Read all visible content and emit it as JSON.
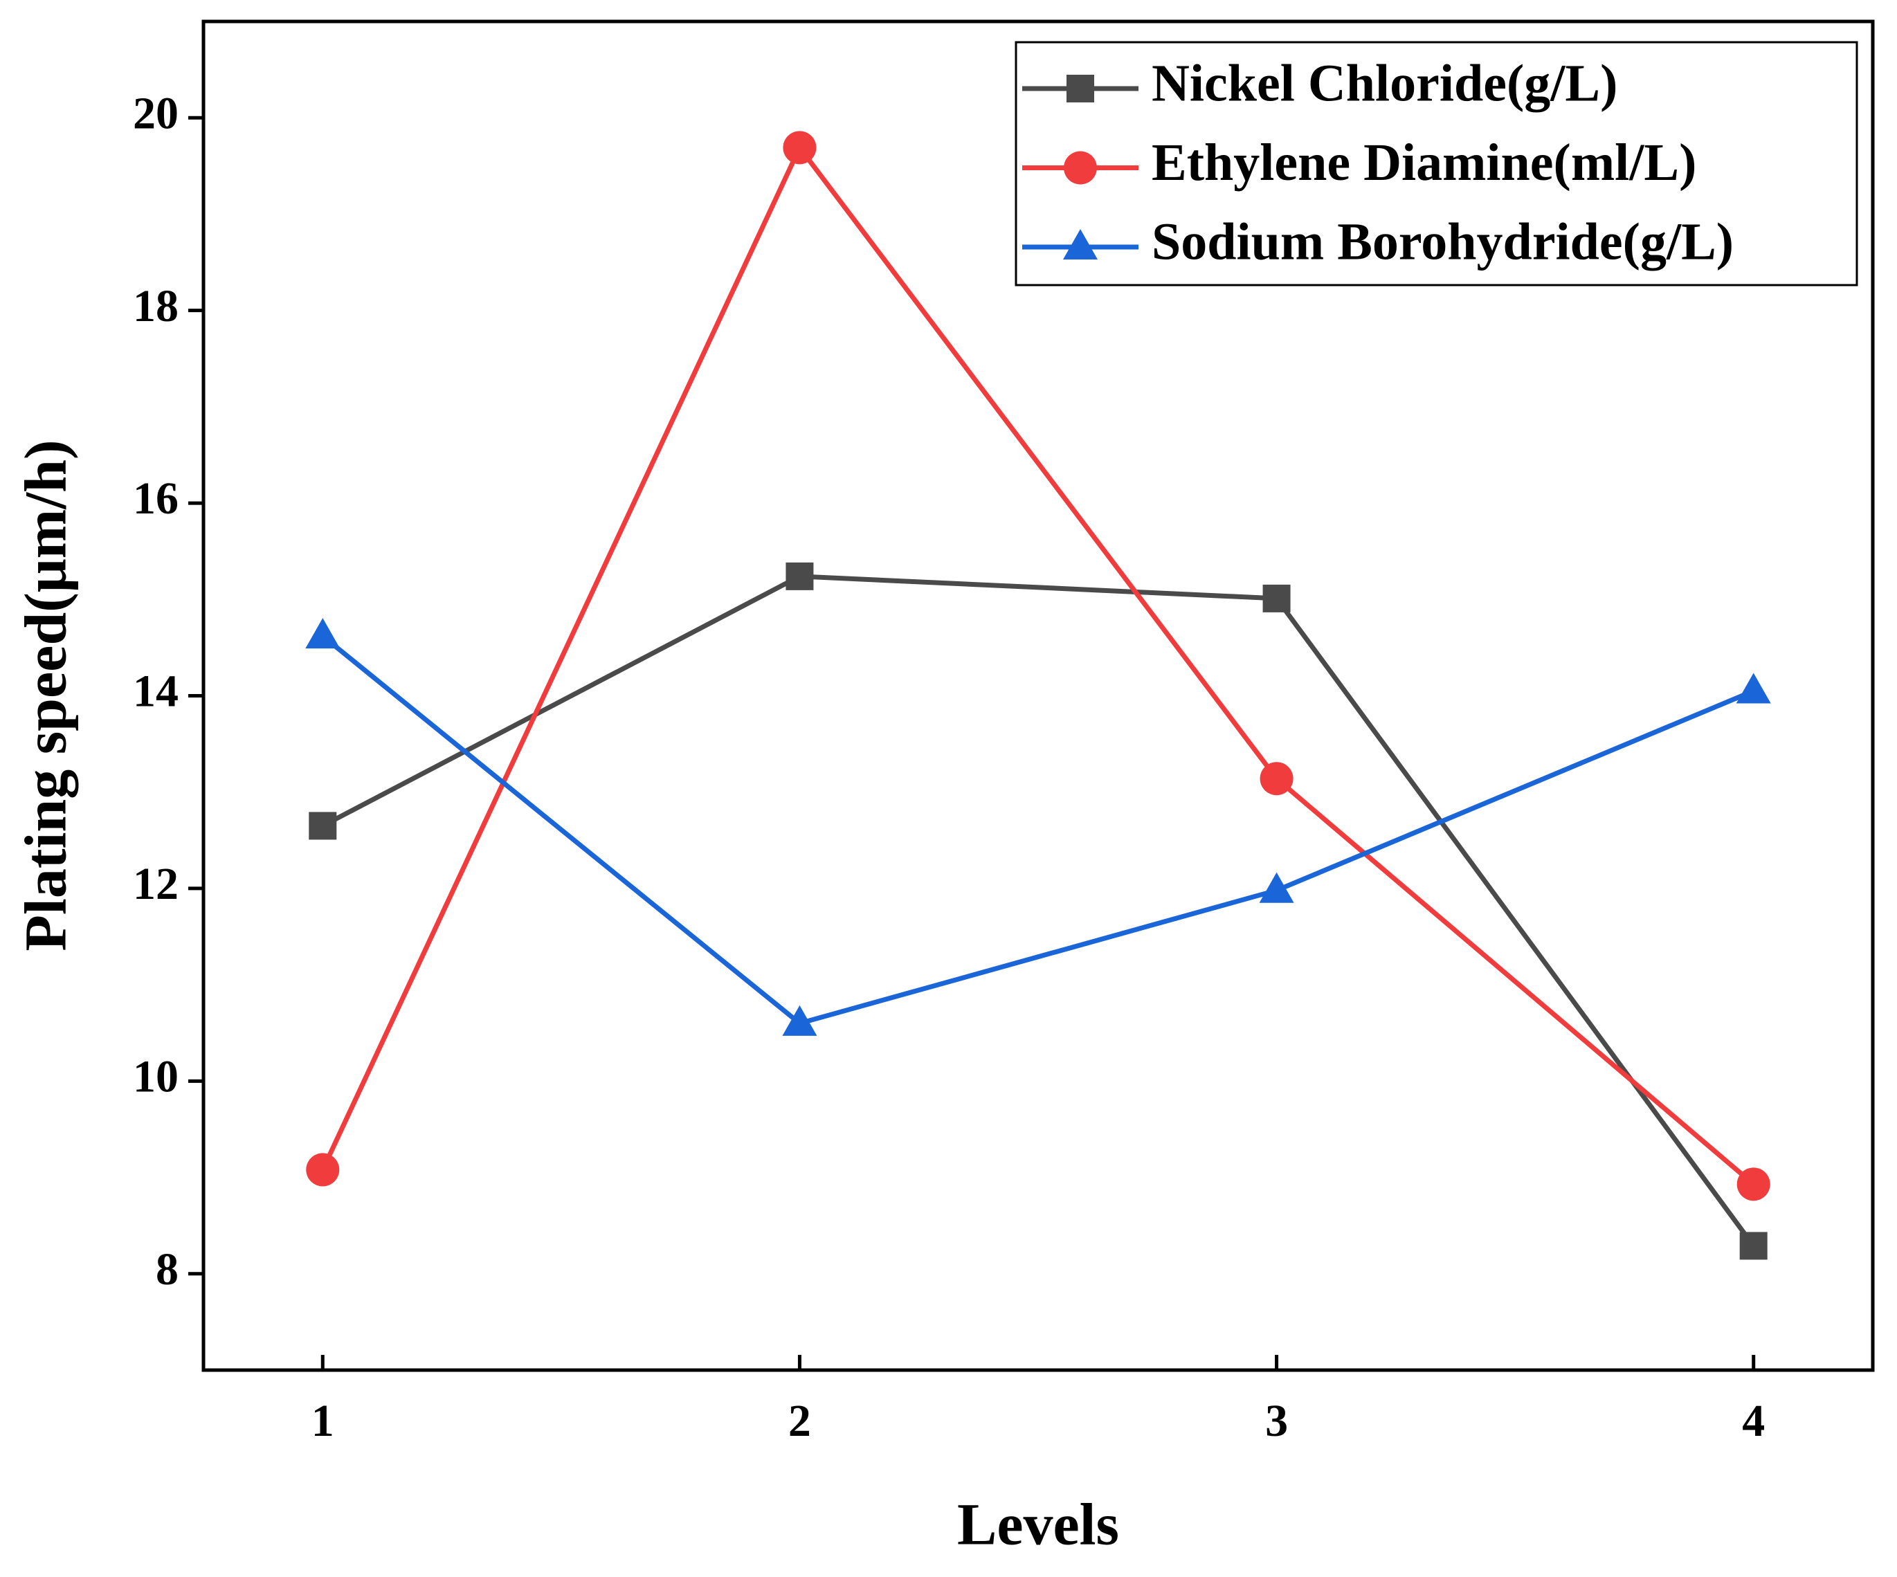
{
  "chart_data": {
    "type": "line",
    "x_label": "Levels",
    "y_label": "Plating speed(μm/h)",
    "x": [
      1,
      2,
      3,
      4
    ],
    "series": [
      {
        "name": "Nickel Chloride(g/L)",
        "color": "#4a4a4a",
        "marker": "square",
        "values": [
          12.65,
          15.24,
          15.01,
          8.29
        ]
      },
      {
        "name": "Ethylene Diamine(ml/L)",
        "color": "#f03c3c",
        "marker": "circle",
        "values": [
          9.08,
          19.69,
          13.14,
          8.93
        ]
      },
      {
        "name": "Sodium Borohydride(g/L)",
        "color": "#1a66d9",
        "marker": "triangle",
        "values": [
          14.62,
          10.6,
          11.98,
          14.05
        ]
      }
    ],
    "xlim": [
      0.75,
      4.25
    ],
    "ylim": [
      7,
      21
    ],
    "xticks": [
      1,
      2,
      3,
      4
    ],
    "yticks": [
      8,
      10,
      12,
      14,
      16,
      18,
      20
    ],
    "grid": false,
    "legend": "upper right"
  }
}
